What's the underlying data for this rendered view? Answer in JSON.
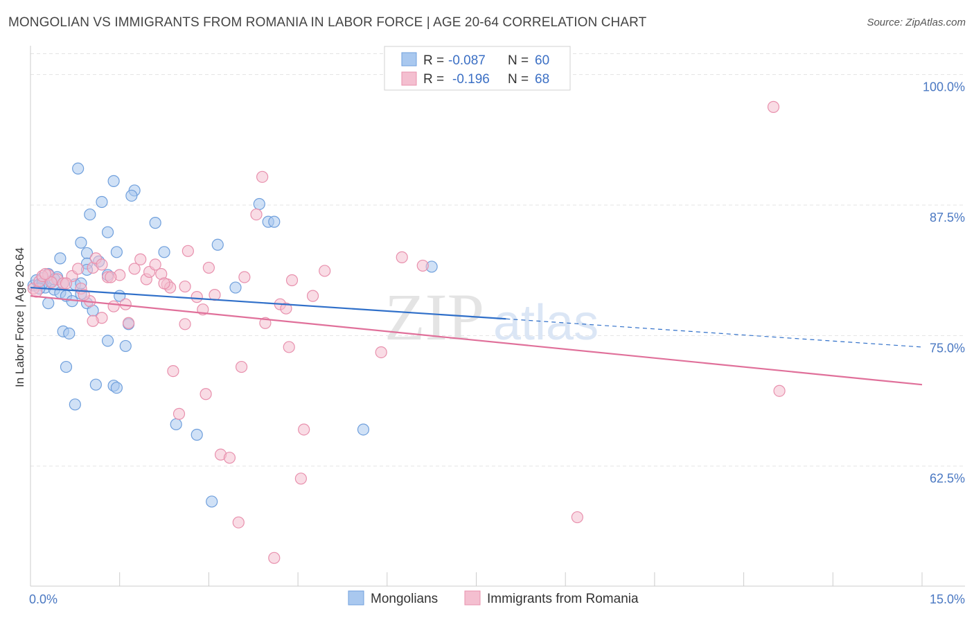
{
  "header": {
    "title": "MONGOLIAN VS IMMIGRANTS FROM ROMANIA IN LABOR FORCE | AGE 20-64 CORRELATION CHART",
    "source": "Source: ZipAtlas.com"
  },
  "watermark": {
    "zip": "ZIP",
    "atlas": "atlas"
  },
  "colors": {
    "blue_fill": "#a9c8ef",
    "blue_stroke": "#6f9fdc",
    "blue_line": "#2f6fc9",
    "pink_fill": "#f4bfd0",
    "pink_stroke": "#e890ad",
    "pink_line": "#e0709a",
    "tick_text": "#4a78c2",
    "grid": "#e3e3e3"
  },
  "legend": {
    "r_label": "R =",
    "n_label": "N =",
    "rows": [
      {
        "r": "-0.087",
        "n": "60",
        "color_key": "blue"
      },
      {
        "r": "-0.196",
        "n": "68",
        "color_key": "pink"
      }
    ]
  },
  "chart_data": {
    "type": "scatter",
    "title": "MONGOLIAN VS IMMIGRANTS FROM ROMANIA IN LABOR FORCE | AGE 20-64 CORRELATION CHART",
    "xlabel": "",
    "ylabel": "In Labor Force | Age 20-64",
    "xlim": [
      0,
      15
    ],
    "ylim": [
      51,
      102.5
    ],
    "x_tick_labels": [
      {
        "value": 0,
        "label": "0.0%"
      },
      {
        "value": 15,
        "label": "15.0%"
      }
    ],
    "y_tick_labels": [
      {
        "value": 100,
        "label": "100.0%"
      },
      {
        "value": 87.5,
        "label": "87.5%"
      },
      {
        "value": 75,
        "label": "75.0%"
      },
      {
        "value": 62.5,
        "label": "62.5%"
      }
    ],
    "x_minor_ticks": [
      0,
      1.5,
      3,
      4.5,
      6,
      7.5,
      9,
      10.5,
      12,
      13.5,
      15
    ],
    "series": [
      {
        "name": "Mongolians",
        "color_key": "blue",
        "r": -0.087,
        "n": 60,
        "trend": {
          "x0": 0,
          "y0": 79.6,
          "x1": 8.0,
          "y1": 76.6,
          "dash_to_x": 15,
          "dash_to_y": 73.9
        },
        "points": [
          [
            0.05,
            79.8
          ],
          [
            0.1,
            80.3
          ],
          [
            0.15,
            79.9
          ],
          [
            0.2,
            80.5
          ],
          [
            0.25,
            79.6
          ],
          [
            0.3,
            80.9
          ],
          [
            0.35,
            80.2
          ],
          [
            0.4,
            79.4
          ],
          [
            0.45,
            80.6
          ],
          [
            0.5,
            79.1
          ],
          [
            0.55,
            80.0
          ],
          [
            0.3,
            78.1
          ],
          [
            0.6,
            78.8
          ],
          [
            0.7,
            78.3
          ],
          [
            0.75,
            79.9
          ],
          [
            0.85,
            79.0
          ],
          [
            0.95,
            78.1
          ],
          [
            1.05,
            77.4
          ],
          [
            0.8,
            91.0
          ],
          [
            1.4,
            89.8
          ],
          [
            1.75,
            88.9
          ],
          [
            1.7,
            88.4
          ],
          [
            1.2,
            87.8
          ],
          [
            1.0,
            86.6
          ],
          [
            2.1,
            85.8
          ],
          [
            1.3,
            84.9
          ],
          [
            0.85,
            83.9
          ],
          [
            1.45,
            83.0
          ],
          [
            2.25,
            83.0
          ],
          [
            0.95,
            82.9
          ],
          [
            0.5,
            82.4
          ],
          [
            1.15,
            82.1
          ],
          [
            0.95,
            81.9
          ],
          [
            0.95,
            81.3
          ],
          [
            1.3,
            80.8
          ],
          [
            0.85,
            80.0
          ],
          [
            1.5,
            78.8
          ],
          [
            1.65,
            76.1
          ],
          [
            0.55,
            75.4
          ],
          [
            0.65,
            75.2
          ],
          [
            1.3,
            74.5
          ],
          [
            1.6,
            74.0
          ],
          [
            0.6,
            72.0
          ],
          [
            1.1,
            70.3
          ],
          [
            1.4,
            70.2
          ],
          [
            1.45,
            70.0
          ],
          [
            0.75,
            68.4
          ],
          [
            2.45,
            66.5
          ],
          [
            2.8,
            65.5
          ],
          [
            3.05,
            59.1
          ],
          [
            3.85,
            87.6
          ],
          [
            4.0,
            85.9
          ],
          [
            4.1,
            85.9
          ],
          [
            3.15,
            83.7
          ],
          [
            3.45,
            79.6
          ],
          [
            6.75,
            81.6
          ],
          [
            5.6,
            66.0
          ],
          [
            0.2,
            80.0
          ],
          [
            0.4,
            80.4
          ],
          [
            0.15,
            79.5
          ]
        ]
      },
      {
        "name": "Immigrants from Romania",
        "color_key": "pink",
        "r": -0.196,
        "n": 68,
        "trend": {
          "x0": 0,
          "y0": 78.8,
          "x1": 15,
          "y1": 70.3
        },
        "points": [
          [
            0.05,
            79.5
          ],
          [
            0.15,
            80.2
          ],
          [
            0.3,
            80.8
          ],
          [
            0.45,
            80.4
          ],
          [
            0.55,
            80.0
          ],
          [
            0.7,
            80.7
          ],
          [
            0.85,
            79.5
          ],
          [
            1.05,
            81.5
          ],
          [
            1.1,
            82.4
          ],
          [
            1.2,
            81.8
          ],
          [
            1.3,
            80.6
          ],
          [
            1.5,
            80.8
          ],
          [
            1.6,
            78.0
          ],
          [
            1.75,
            81.4
          ],
          [
            1.85,
            82.3
          ],
          [
            1.95,
            80.4
          ],
          [
            2.0,
            81.1
          ],
          [
            2.1,
            81.8
          ],
          [
            2.2,
            80.9
          ],
          [
            2.3,
            79.9
          ],
          [
            2.35,
            79.6
          ],
          [
            1.0,
            78.3
          ],
          [
            0.9,
            78.9
          ],
          [
            1.2,
            76.7
          ],
          [
            1.05,
            76.4
          ],
          [
            1.4,
            77.8
          ],
          [
            1.65,
            76.2
          ],
          [
            2.4,
            71.6
          ],
          [
            2.5,
            67.5
          ],
          [
            2.6,
            79.7
          ],
          [
            2.6,
            76.1
          ],
          [
            2.65,
            83.1
          ],
          [
            2.8,
            78.7
          ],
          [
            2.9,
            77.5
          ],
          [
            2.95,
            69.4
          ],
          [
            3.0,
            81.5
          ],
          [
            3.1,
            78.9
          ],
          [
            3.2,
            63.6
          ],
          [
            3.35,
            63.3
          ],
          [
            3.55,
            72.0
          ],
          [
            3.5,
            57.1
          ],
          [
            3.9,
            90.2
          ],
          [
            3.8,
            86.6
          ],
          [
            3.95,
            76.2
          ],
          [
            4.2,
            78.0
          ],
          [
            4.3,
            77.6
          ],
          [
            4.35,
            73.9
          ],
          [
            4.4,
            80.3
          ],
          [
            4.55,
            61.3
          ],
          [
            4.6,
            66.0
          ],
          [
            4.75,
            78.8
          ],
          [
            4.95,
            81.2
          ],
          [
            5.9,
            73.4
          ],
          [
            6.25,
            82.5
          ],
          [
            6.6,
            81.7
          ],
          [
            9.2,
            57.6
          ],
          [
            12.5,
            96.9
          ],
          [
            12.6,
            69.7
          ],
          [
            4.1,
            53.7
          ],
          [
            0.2,
            80.7
          ],
          [
            0.35,
            80.1
          ],
          [
            0.6,
            80.0
          ],
          [
            0.8,
            81.4
          ],
          [
            1.35,
            80.6
          ],
          [
            2.25,
            80.0
          ],
          [
            3.6,
            80.6
          ],
          [
            0.25,
            80.9
          ],
          [
            0.1,
            79.2
          ]
        ]
      }
    ],
    "legend_labels": [
      "Mongolians",
      "Immigrants from Romania"
    ]
  }
}
